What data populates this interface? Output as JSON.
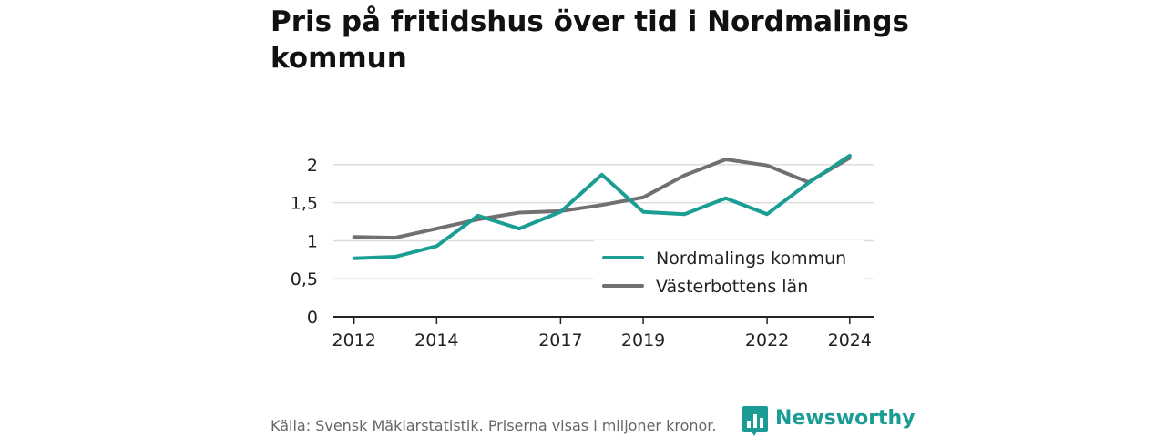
{
  "chart_data": {
    "type": "line",
    "title": "Pris på fritidshus över tid i Nordmalings kommun",
    "xlabel": "",
    "ylabel": "",
    "x": [
      2012,
      2013,
      2014,
      2015,
      2016,
      2017,
      2018,
      2019,
      2020,
      2021,
      2022,
      2023,
      2024
    ],
    "x_ticks": [
      2012,
      2014,
      2017,
      2019,
      2022,
      2024
    ],
    "x_tick_labels": [
      "2012",
      "2014",
      "2017",
      "2019",
      "2022",
      "2024"
    ],
    "y_ticks": [
      0,
      0.5,
      1,
      1.5,
      2
    ],
    "y_tick_labels": [
      "0",
      "0,5",
      "1",
      "1,5",
      "2"
    ],
    "ylim": [
      0,
      2.25
    ],
    "xlim": [
      2011.5,
      2024.6
    ],
    "grid": true,
    "legend_position": "bottom-right",
    "series": [
      {
        "name": "Nordmalings kommun",
        "color": "#1a9e94",
        "values": [
          0.77,
          0.79,
          0.93,
          1.33,
          1.16,
          1.38,
          1.87,
          1.38,
          1.35,
          1.56,
          1.35,
          1.76,
          2.12
        ]
      },
      {
        "name": "Västerbottens län",
        "color": "#716e74",
        "values": [
          1.05,
          1.04,
          1.16,
          1.28,
          1.37,
          1.39,
          1.47,
          1.57,
          1.86,
          2.07,
          1.99,
          1.77,
          2.09
        ]
      }
    ]
  },
  "footer": {
    "source": "Källa: Svensk Mäklarstatistik. Priserna visas i miljoner kronor."
  },
  "brand": {
    "name": "Newsworthy",
    "logo_icon": "newsworthy-bar-chart-icon",
    "color": "#1a9c94"
  }
}
